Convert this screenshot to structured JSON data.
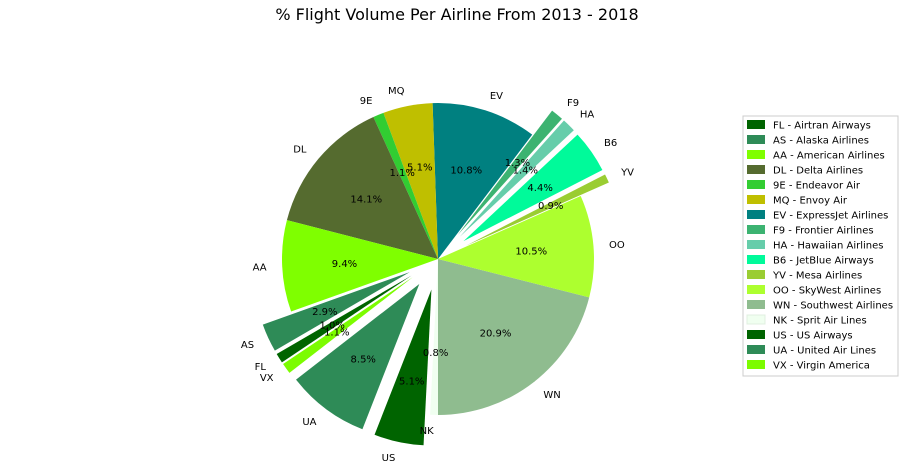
{
  "chart_data": {
    "type": "pie",
    "title": "% Flight Volume Per Airline From 2013 - 2018",
    "slices": [
      {
        "code": "WN",
        "label": "WN - Southwest Airlines",
        "value": 20.9,
        "pct": "20.9%",
        "color": "#8fbc8f",
        "exploded": false
      },
      {
        "code": "OO",
        "label": "OO - SkyWest Airlines",
        "value": 10.5,
        "pct": "10.5%",
        "color": "#adff2f",
        "exploded": false
      },
      {
        "code": "YV",
        "label": "YV - Mesa Airlines",
        "value": 0.9,
        "pct": "0.9%",
        "color": "#9acd32",
        "exploded": true
      },
      {
        "code": "B6",
        "label": "B6 - JetBlue Airways",
        "value": 4.4,
        "pct": "4.4%",
        "color": "#00fa9a",
        "exploded": true
      },
      {
        "code": "HA",
        "label": "HA - Hawaiian Airlines",
        "value": 1.4,
        "pct": "1.4%",
        "color": "#66cdaa",
        "exploded": true
      },
      {
        "code": "F9",
        "label": "F9 - Frontier Airlines",
        "value": 1.3,
        "pct": "1.3%",
        "color": "#3cb371",
        "exploded": true
      },
      {
        "code": "EV",
        "label": "EV - ExpressJet Airlines",
        "value": 10.8,
        "pct": "10.8%",
        "color": "#008080",
        "exploded": false
      },
      {
        "code": "MQ",
        "label": "MQ - Envoy Air",
        "value": 5.1,
        "pct": "5.1%",
        "color": "#bfbf00",
        "exploded": false
      },
      {
        "code": "9E",
        "label": "9E - Endeavor Air",
        "value": 1.1,
        "pct": "1.1%",
        "color": "#32cd32",
        "exploded": false
      },
      {
        "code": "DL",
        "label": "DL - Delta Airlines",
        "value": 14.1,
        "pct": "14.1%",
        "color": "#556b2f",
        "exploded": false
      },
      {
        "code": "AA",
        "label": "AA - American Airlines",
        "value": 9.4,
        "pct": "9.4%",
        "color": "#7fff00",
        "exploded": false
      },
      {
        "code": "AS",
        "label": "AS - Alaska Airlines",
        "value": 2.9,
        "pct": "2.9%",
        "color": "#2e8b57",
        "exploded": true
      },
      {
        "code": "FL",
        "label": "FL - Airtran Airways",
        "value": 1.0,
        "pct": "1.0%",
        "color": "#006400",
        "exploded": true
      },
      {
        "code": "VX",
        "label": "VX - Virgin America",
        "value": 1.1,
        "pct": "1.1%",
        "color": "#7cfc00",
        "exploded": true
      },
      {
        "code": "UA",
        "label": "UA - United Air Lines",
        "value": 8.5,
        "pct": "8.5%",
        "color": "#2e8b57",
        "exploded": true
      },
      {
        "code": "US",
        "label": "US - US Airways",
        "value": 5.1,
        "pct": "5.1%",
        "color": "#006400",
        "exploded": true
      },
      {
        "code": "NK",
        "label": "NK - Sprit Air Lines",
        "value": 0.8,
        "pct": "0.8%",
        "color": "#f0fff0",
        "exploded": false
      }
    ],
    "legend_order": [
      "FL",
      "AS",
      "AA",
      "DL",
      "9E",
      "MQ",
      "EV",
      "F9",
      "HA",
      "B6",
      "YV",
      "OO",
      "WN",
      "NK",
      "US",
      "UA",
      "VX"
    ],
    "legend_position": "right"
  }
}
